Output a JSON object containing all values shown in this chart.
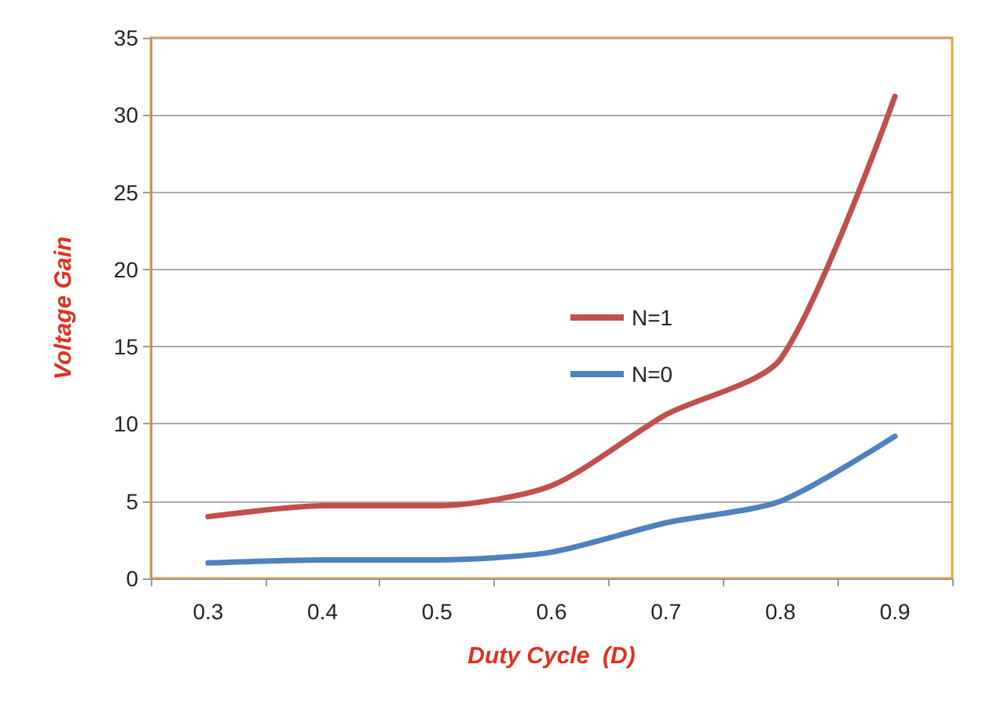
{
  "chart_data": {
    "type": "line",
    "xlabel": "Duty Cycle  (D)",
    "ylabel": "Voltage Gain",
    "categories": [
      "0.3",
      "0.4",
      "0.5",
      "0.6",
      "0.7",
      "0.8",
      "0.9"
    ],
    "series": [
      {
        "name": "N=1",
        "color": "#c0504d",
        "values": [
          4,
          4.7,
          4.7,
          6,
          10.6,
          14.2,
          31.2
        ]
      },
      {
        "name": "N=0",
        "color": "#4f81bd",
        "values": [
          1,
          1.2,
          1.2,
          1.7,
          3.6,
          5,
          9.2
        ]
      }
    ],
    "ylim": [
      0,
      35
    ],
    "yticks": [
      0,
      5,
      10,
      15,
      20,
      25,
      30,
      35
    ],
    "grid": "y",
    "legend": "center right",
    "marker": "none",
    "line_style": "solid"
  }
}
